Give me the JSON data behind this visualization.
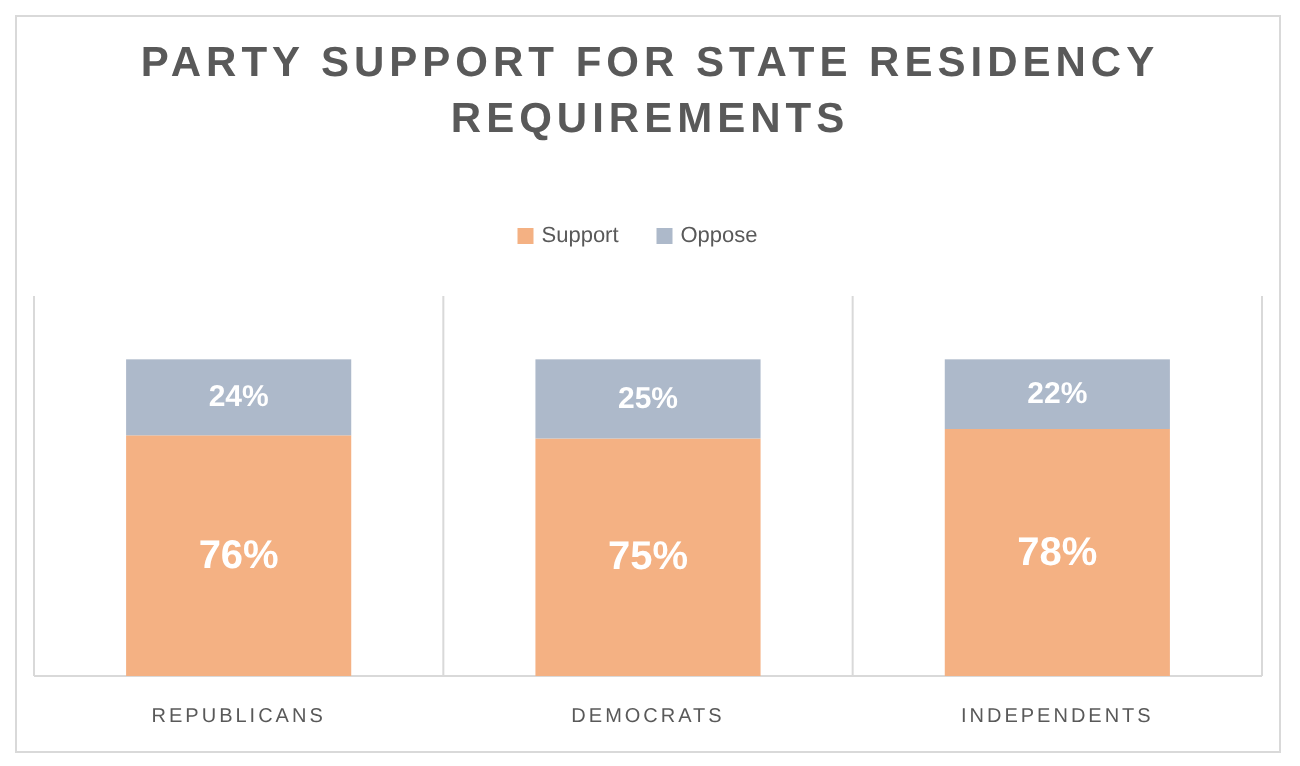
{
  "chart_data": {
    "type": "bar",
    "title": "PARTY SUPPORT FOR STATE RESIDENCY REQUIREMENTS",
    "categories": [
      "REPUBLICANS",
      "DEMOCRATS",
      "INDEPENDENTS"
    ],
    "stacked": true,
    "series": [
      {
        "name": "Support",
        "color": "#f4b183",
        "values": [
          76,
          75,
          78
        ],
        "value_labels": [
          "76%",
          "75%",
          "78%"
        ]
      },
      {
        "name": "Oppose",
        "color": "#adb9ca",
        "values": [
          24,
          25,
          22
        ],
        "value_labels": [
          "24%",
          "25%",
          "22%"
        ]
      }
    ],
    "ylim": [
      0,
      120
    ],
    "grid": "x",
    "legend": "top",
    "tick_labels": "x"
  }
}
